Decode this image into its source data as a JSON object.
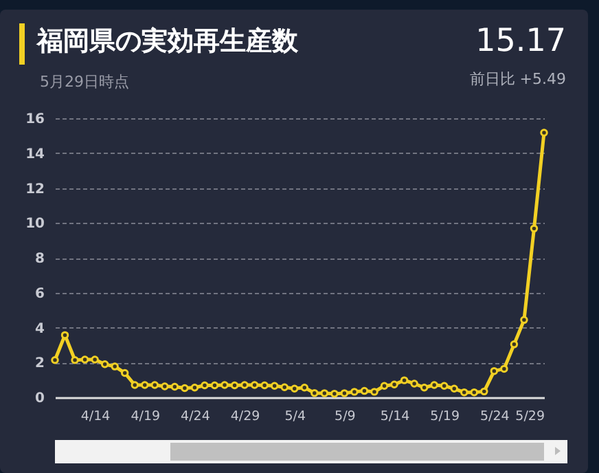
{
  "chart_data": {
    "type": "line",
    "title": "福岡県の実効再生産数",
    "subtitle": "5月29日時点",
    "annotations": [
      "15.17",
      "前日比 +5.49"
    ],
    "x": [
      "--04-10",
      "--04-11",
      "--04-12",
      "--04-13",
      "--04-14",
      "--04-15",
      "--04-16",
      "--04-17",
      "--04-18",
      "--04-19",
      "--04-20",
      "--04-21",
      "--04-22",
      "--04-23",
      "--04-24",
      "--04-25",
      "--04-26",
      "--04-27",
      "--04-28",
      "--04-29",
      "--04-30",
      "--05-01",
      "--05-02",
      "--05-03",
      "--05-04",
      "--05-05",
      "--05-06",
      "--05-07",
      "--05-08",
      "--05-09",
      "--05-10",
      "--05-11",
      "--05-12",
      "--05-13",
      "--05-14",
      "--05-15",
      "--05-16",
      "--05-17",
      "--05-18",
      "--05-19",
      "--05-20",
      "--05-21",
      "--05-22",
      "--05-23",
      "--05-24",
      "--05-25",
      "--05-26",
      "--05-27",
      "--05-28",
      "--05-29"
    ],
    "series": [
      {
        "color": "#f2d024",
        "values": [
          2.14,
          3.57,
          2.14,
          2.17,
          2.17,
          1.9,
          1.77,
          1.4,
          0.71,
          0.71,
          0.71,
          0.63,
          0.61,
          0.53,
          0.56,
          0.69,
          0.69,
          0.71,
          0.69,
          0.71,
          0.71,
          0.69,
          0.66,
          0.58,
          0.5,
          0.56,
          0.25,
          0.24,
          0.21,
          0.24,
          0.32,
          0.37,
          0.32,
          0.66,
          0.74,
          0.98,
          0.79,
          0.56,
          0.71,
          0.66,
          0.5,
          0.29,
          0.29,
          0.34,
          1.51,
          1.64,
          3.04,
          4.44,
          9.68,
          15.17
        ]
      }
    ],
    "xlim": [
      "--04-10",
      "--05-29"
    ],
    "xticks": [
      {
        "value": "--04-14",
        "label": "4/14"
      },
      {
        "value": "--04-19",
        "label": "4/19"
      },
      {
        "value": "--04-24",
        "label": "4/24"
      },
      {
        "value": "--04-29",
        "label": "4/29"
      },
      {
        "value": "--05-04",
        "label": "5/4"
      },
      {
        "value": "--05-09",
        "label": "5/9"
      },
      {
        "value": "--05-14",
        "label": "5/14"
      },
      {
        "value": "--05-19",
        "label": "5/19"
      },
      {
        "value": "--05-24",
        "label": "5/24"
      },
      {
        "value": "--05-29",
        "label": "5/29"
      }
    ],
    "ylim": [
      0,
      16
    ],
    "yticks": [
      0,
      2,
      4,
      6,
      8,
      10,
      12,
      14,
      16
    ],
    "grid": "y",
    "marker": "circle",
    "line_style": "solid",
    "legend": false
  }
}
